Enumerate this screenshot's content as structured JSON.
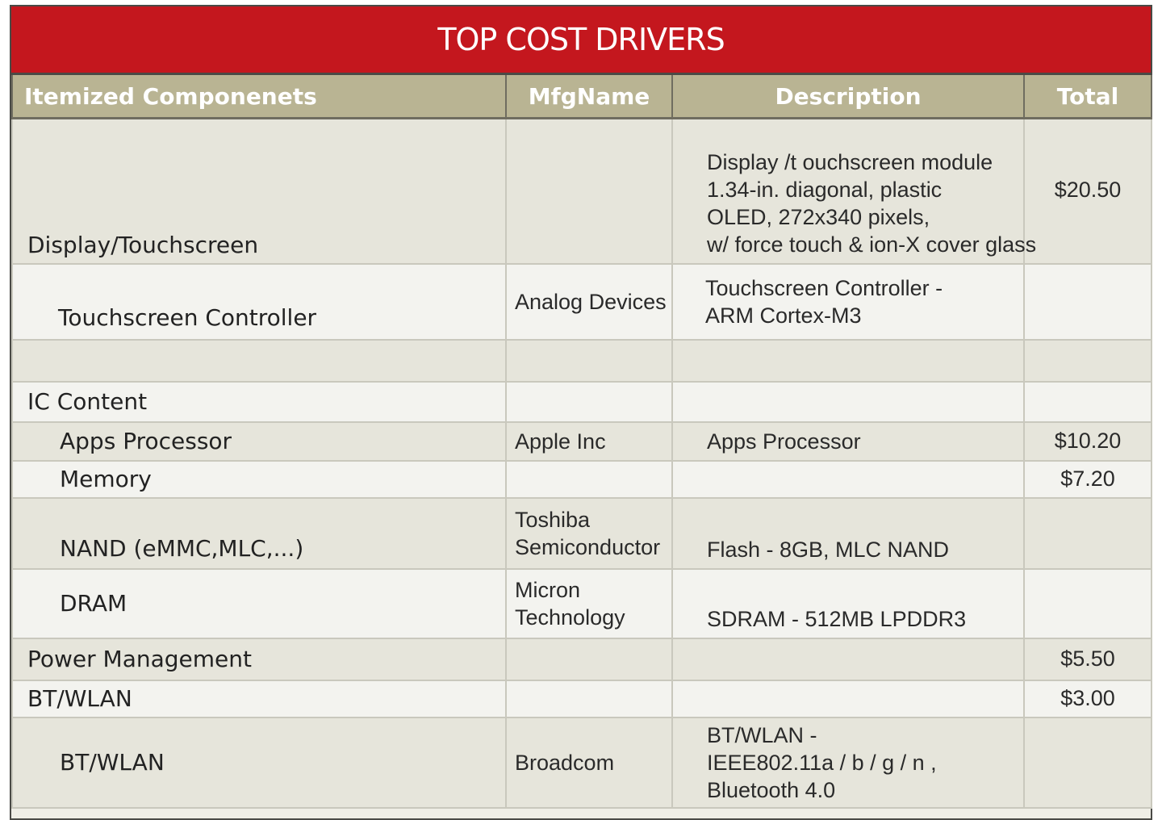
{
  "title": "TOP COST DRIVERS",
  "columns": {
    "component": "Itemized Componenets",
    "mfg": "MfgName",
    "description": "Description",
    "total": "Total"
  },
  "rows": [
    {
      "component": "Display/Touchscreen",
      "mfg": "",
      "description": [
        "Display /t ouchscreen module",
        "1.34-in. diagonal, plastic",
        "OLED, 272x340 pixels,",
        "w/ force touch & ion-X cover glass"
      ],
      "total": "$20.50"
    },
    {
      "component": "Touchscreen Controller",
      "mfg": "Analog Devices",
      "description": [
        "Touchscreen Controller -",
        "ARM Cortex-M3"
      ],
      "total": ""
    },
    {
      "component": "",
      "mfg": "",
      "description": [],
      "total": ""
    },
    {
      "component": "IC Content",
      "mfg": "",
      "description": [],
      "total": ""
    },
    {
      "component": "Apps Processor",
      "mfg": "Apple Inc",
      "description": [
        "Apps Processor"
      ],
      "total": "$10.20"
    },
    {
      "component": "Memory",
      "mfg": "",
      "description": [],
      "total": "$7.20"
    },
    {
      "component": "NAND (eMMC,MLC,...)",
      "mfg": [
        "Toshiba",
        "Semiconductor"
      ],
      "description": [
        "Flash - 8GB, MLC NAND"
      ],
      "total": ""
    },
    {
      "component": "DRAM",
      "mfg": [
        "Micron",
        "Technology"
      ],
      "description": [
        "SDRAM - 512MB LPDDR3"
      ],
      "total": ""
    },
    {
      "component": "Power Management",
      "mfg": "",
      "description": [],
      "total": "$5.50"
    },
    {
      "component": "BT/WLAN",
      "mfg": "",
      "description": [],
      "total": "$3.00"
    },
    {
      "component": "BT/WLAN",
      "mfg": "Broadcom",
      "description": [
        "BT/WLAN -",
        "IEEE802.11a / b / g / n ,",
        "Bluetooth 4.0"
      ],
      "total": ""
    }
  ]
}
